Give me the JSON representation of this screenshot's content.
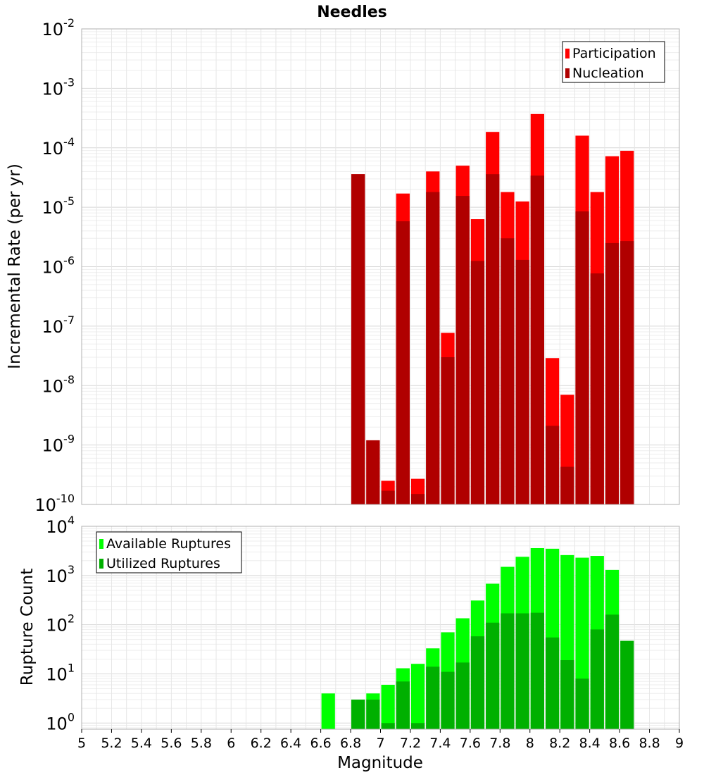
{
  "title": "Needles",
  "xlabel": "Magnitude",
  "x_ticks": [
    "5",
    "5.2",
    "5.4",
    "5.6",
    "5.8",
    "6",
    "6.2",
    "6.4",
    "6.6",
    "6.8",
    "7",
    "7.2",
    "7.4",
    "7.6",
    "7.8",
    "8",
    "8.2",
    "8.4",
    "8.6",
    "8.8",
    "9"
  ],
  "colors": {
    "participation": "#ff0000",
    "nucleation": "#b00000",
    "available": "#00ff00",
    "utilized": "#00b000"
  },
  "chart_data": [
    {
      "type": "bar",
      "log_scale": true,
      "ylabel": "Incremental Rate (per yr)",
      "xlim": [
        5,
        9
      ],
      "ylim": [
        1e-10,
        0.01
      ],
      "y_ticks": [
        {
          "base": "10",
          "exp": "-10"
        },
        {
          "base": "10",
          "exp": "-9"
        },
        {
          "base": "10",
          "exp": "-8"
        },
        {
          "base": "10",
          "exp": "-7"
        },
        {
          "base": "10",
          "exp": "-6"
        },
        {
          "base": "10",
          "exp": "-5"
        },
        {
          "base": "10",
          "exp": "-4"
        },
        {
          "base": "10",
          "exp": "-3"
        },
        {
          "base": "10",
          "exp": "-2"
        }
      ],
      "grid": true,
      "legend_position": "top-right",
      "x": [
        6.85,
        6.95,
        7.05,
        7.15,
        7.25,
        7.35,
        7.45,
        7.55,
        7.65,
        7.75,
        7.85,
        7.95,
        8.05,
        8.15,
        8.25,
        8.35,
        8.45,
        8.55,
        8.65
      ],
      "series": [
        {
          "name": "Participation",
          "color_key": "participation",
          "values": [
            3.6e-05,
            1.2e-09,
            2.5e-10,
            1.7e-05,
            2.7e-10,
            4e-05,
            7.7e-08,
            5e-05,
            6.3e-06,
            0.000185,
            1.8e-05,
            1.25e-05,
            0.00037,
            2.9e-08,
            7e-09,
            0.00016,
            1.8e-05,
            7.2e-05,
            8.9e-05
          ]
        },
        {
          "name": "Nucleation",
          "color_key": "nucleation",
          "values": [
            3.6e-05,
            1.2e-09,
            1.7e-10,
            5.8e-06,
            1.5e-10,
            1.8e-05,
            3e-08,
            1.55e-05,
            1.25e-06,
            3.6e-05,
            3e-06,
            1.3e-06,
            3.4e-05,
            2.1e-09,
            4.3e-10,
            8.5e-06,
            7.7e-07,
            2.5e-06,
            2.7e-06
          ]
        }
      ]
    },
    {
      "type": "bar",
      "log_scale": true,
      "ylabel": "Rupture Count",
      "xlim": [
        5,
        9
      ],
      "ylim": [
        0.75,
        10000
      ],
      "y_ticks": [
        {
          "base": "10",
          "exp": "0",
          "value": 1
        },
        {
          "base": "10",
          "exp": "1",
          "value": 10
        },
        {
          "base": "10",
          "exp": "2",
          "value": 100
        },
        {
          "base": "10",
          "exp": "3",
          "value": 1000
        },
        {
          "base": "10",
          "exp": "4",
          "value": 10000
        }
      ],
      "grid": true,
      "legend_position": "top-left",
      "x": [
        6.65,
        6.85,
        6.95,
        7.05,
        7.15,
        7.25,
        7.35,
        7.45,
        7.55,
        7.65,
        7.75,
        7.85,
        7.95,
        8.05,
        8.15,
        8.25,
        8.35,
        8.45,
        8.55,
        8.65
      ],
      "series": [
        {
          "name": "Available Ruptures",
          "color_key": "available",
          "values": [
            4,
            3,
            4,
            6,
            13,
            16,
            33,
            70,
            135,
            310,
            680,
            1500,
            2400,
            3600,
            3500,
            2600,
            2300,
            2500,
            1300,
            0
          ]
        },
        {
          "name": "Utilized Ruptures",
          "color_key": "utilized",
          "values": [
            0,
            3,
            3,
            1,
            7,
            1,
            14,
            11,
            17,
            58,
            110,
            170,
            170,
            175,
            55,
            19,
            8,
            80,
            160,
            47
          ]
        }
      ]
    }
  ]
}
